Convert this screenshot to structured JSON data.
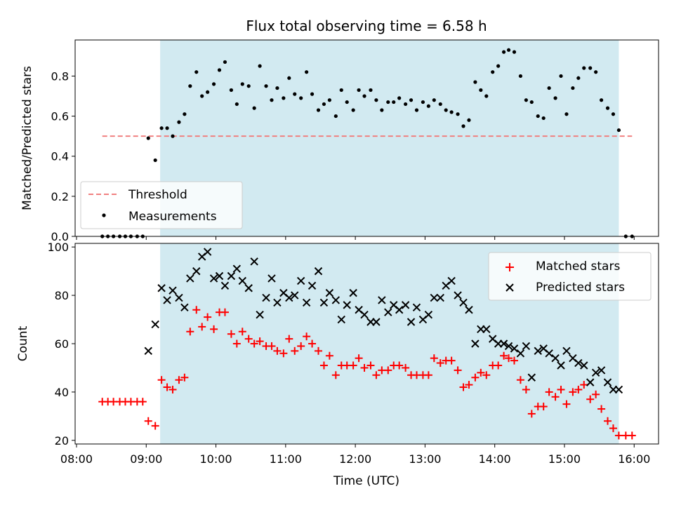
{
  "chart_data": [
    {
      "type": "scatter",
      "title": "Flux total observing time = 6.58 h",
      "ylabel": "Matched/Predicted stars",
      "ylim": [
        0.0,
        0.98
      ],
      "yticks": [
        "0.0",
        "0.2",
        "0.4",
        "0.6",
        "0.8"
      ],
      "yticks_values": [
        0.0,
        0.2,
        0.4,
        0.6,
        0.8
      ],
      "xlim_hours": [
        7.98,
        16.35
      ],
      "shaded_interval_hours": [
        9.2,
        15.78
      ],
      "shade_color": "#add8e6",
      "threshold": {
        "name": "Threshold",
        "value": 0.5,
        "x_start_hours": 8.37,
        "x_end_hours": 15.97,
        "color": "#f08080",
        "style": "dashed"
      },
      "measurements": {
        "name": "Measurements",
        "color": "#000000",
        "points": [
          [
            8.37,
            0.0
          ],
          [
            8.45,
            0.0
          ],
          [
            8.53,
            0.0
          ],
          [
            8.62,
            0.0
          ],
          [
            8.7,
            0.0
          ],
          [
            8.78,
            0.0
          ],
          [
            8.87,
            0.0
          ],
          [
            8.95,
            0.0
          ],
          [
            9.03,
            0.49
          ],
          [
            9.13,
            0.38
          ],
          [
            9.22,
            0.54
          ],
          [
            9.3,
            0.54
          ],
          [
            9.38,
            0.5
          ],
          [
            9.47,
            0.57
          ],
          [
            9.55,
            0.61
          ],
          [
            9.63,
            0.75
          ],
          [
            9.72,
            0.82
          ],
          [
            9.8,
            0.7
          ],
          [
            9.88,
            0.72
          ],
          [
            9.97,
            0.76
          ],
          [
            10.05,
            0.83
          ],
          [
            10.13,
            0.87
          ],
          [
            10.22,
            0.73
          ],
          [
            10.3,
            0.66
          ],
          [
            10.38,
            0.76
          ],
          [
            10.47,
            0.75
          ],
          [
            10.55,
            0.64
          ],
          [
            10.63,
            0.85
          ],
          [
            10.72,
            0.75
          ],
          [
            10.8,
            0.68
          ],
          [
            10.88,
            0.74
          ],
          [
            10.97,
            0.69
          ],
          [
            11.05,
            0.79
          ],
          [
            11.13,
            0.71
          ],
          [
            11.22,
            0.69
          ],
          [
            11.3,
            0.82
          ],
          [
            11.38,
            0.71
          ],
          [
            11.47,
            0.63
          ],
          [
            11.55,
            0.66
          ],
          [
            11.63,
            0.68
          ],
          [
            11.72,
            0.6
          ],
          [
            11.8,
            0.73
          ],
          [
            11.88,
            0.67
          ],
          [
            11.97,
            0.63
          ],
          [
            12.05,
            0.73
          ],
          [
            12.13,
            0.7
          ],
          [
            12.22,
            0.73
          ],
          [
            12.3,
            0.68
          ],
          [
            12.38,
            0.63
          ],
          [
            12.47,
            0.67
          ],
          [
            12.55,
            0.67
          ],
          [
            12.63,
            0.69
          ],
          [
            12.72,
            0.66
          ],
          [
            12.8,
            0.68
          ],
          [
            12.88,
            0.63
          ],
          [
            12.97,
            0.67
          ],
          [
            13.05,
            0.65
          ],
          [
            13.13,
            0.68
          ],
          [
            13.22,
            0.66
          ],
          [
            13.3,
            0.63
          ],
          [
            13.38,
            0.62
          ],
          [
            13.47,
            0.61
          ],
          [
            13.55,
            0.55
          ],
          [
            13.63,
            0.58
          ],
          [
            13.72,
            0.77
          ],
          [
            13.8,
            0.73
          ],
          [
            13.88,
            0.7
          ],
          [
            13.97,
            0.82
          ],
          [
            14.05,
            0.85
          ],
          [
            14.13,
            0.92
          ],
          [
            14.2,
            0.93
          ],
          [
            14.28,
            0.92
          ],
          [
            14.37,
            0.8
          ],
          [
            14.45,
            0.68
          ],
          [
            14.53,
            0.67
          ],
          [
            14.62,
            0.6
          ],
          [
            14.7,
            0.59
          ],
          [
            14.78,
            0.74
          ],
          [
            14.87,
            0.69
          ],
          [
            14.95,
            0.8
          ],
          [
            15.03,
            0.61
          ],
          [
            15.12,
            0.74
          ],
          [
            15.2,
            0.79
          ],
          [
            15.28,
            0.84
          ],
          [
            15.37,
            0.84
          ],
          [
            15.45,
            0.82
          ],
          [
            15.53,
            0.68
          ],
          [
            15.62,
            0.64
          ],
          [
            15.7,
            0.61
          ],
          [
            15.78,
            0.53
          ],
          [
            15.88,
            0.0
          ],
          [
            15.97,
            0.0
          ]
        ]
      },
      "legend_position": "lower-left"
    },
    {
      "type": "scatter",
      "xlabel": "Time (UTC)",
      "ylabel": "Count",
      "ylim": [
        18.5,
        101.5
      ],
      "yticks": [
        "20",
        "40",
        "60",
        "80",
        "100"
      ],
      "yticks_values": [
        20,
        40,
        60,
        80,
        100
      ],
      "xlim_hours": [
        7.98,
        16.35
      ],
      "xticks": [
        "08:00",
        "09:00",
        "10:00",
        "11:00",
        "12:00",
        "13:00",
        "14:00",
        "15:00",
        "16:00"
      ],
      "xticks_hours": [
        8,
        9,
        10,
        11,
        12,
        13,
        14,
        15,
        16
      ],
      "shaded_interval_hours": [
        9.2,
        15.78
      ],
      "legend_position": "upper-right",
      "series": [
        {
          "name": "Matched stars",
          "marker": "+",
          "color": "#ff0000",
          "points": [
            [
              8.37,
              36
            ],
            [
              8.45,
              36
            ],
            [
              8.53,
              36
            ],
            [
              8.62,
              36
            ],
            [
              8.7,
              36
            ],
            [
              8.78,
              36
            ],
            [
              8.87,
              36
            ],
            [
              8.95,
              36
            ],
            [
              9.03,
              28
            ],
            [
              9.13,
              26
            ],
            [
              9.22,
              45
            ],
            [
              9.3,
              42
            ],
            [
              9.38,
              41
            ],
            [
              9.47,
              45
            ],
            [
              9.55,
              46
            ],
            [
              9.63,
              65
            ],
            [
              9.72,
              74
            ],
            [
              9.8,
              67
            ],
            [
              9.88,
              71
            ],
            [
              9.97,
              66
            ],
            [
              10.05,
              73
            ],
            [
              10.13,
              73
            ],
            [
              10.22,
              64
            ],
            [
              10.3,
              60
            ],
            [
              10.38,
              65
            ],
            [
              10.47,
              62
            ],
            [
              10.55,
              60
            ],
            [
              10.63,
              61
            ],
            [
              10.72,
              59
            ],
            [
              10.8,
              59
            ],
            [
              10.88,
              57
            ],
            [
              10.97,
              56
            ],
            [
              11.05,
              62
            ],
            [
              11.13,
              57
            ],
            [
              11.22,
              59
            ],
            [
              11.3,
              63
            ],
            [
              11.38,
              60
            ],
            [
              11.47,
              57
            ],
            [
              11.55,
              51
            ],
            [
              11.63,
              55
            ],
            [
              11.72,
              47
            ],
            [
              11.8,
              51
            ],
            [
              11.88,
              51
            ],
            [
              11.97,
              51
            ],
            [
              12.05,
              54
            ],
            [
              12.13,
              50
            ],
            [
              12.22,
              51
            ],
            [
              12.3,
              47
            ],
            [
              12.38,
              49
            ],
            [
              12.47,
              49
            ],
            [
              12.55,
              51
            ],
            [
              12.63,
              51
            ],
            [
              12.72,
              50
            ],
            [
              12.8,
              47
            ],
            [
              12.88,
              47
            ],
            [
              12.97,
              47
            ],
            [
              13.05,
              47
            ],
            [
              13.13,
              54
            ],
            [
              13.22,
              52
            ],
            [
              13.3,
              53
            ],
            [
              13.38,
              53
            ],
            [
              13.47,
              49
            ],
            [
              13.55,
              42
            ],
            [
              13.63,
              43
            ],
            [
              13.72,
              46
            ],
            [
              13.8,
              48
            ],
            [
              13.88,
              47
            ],
            [
              13.97,
              51
            ],
            [
              14.05,
              51
            ],
            [
              14.13,
              55
            ],
            [
              14.2,
              54
            ],
            [
              14.28,
              53
            ],
            [
              14.37,
              45
            ],
            [
              14.45,
              41
            ],
            [
              14.53,
              31
            ],
            [
              14.62,
              34
            ],
            [
              14.7,
              34
            ],
            [
              14.78,
              40
            ],
            [
              14.87,
              38
            ],
            [
              14.95,
              41
            ],
            [
              15.03,
              35
            ],
            [
              15.12,
              40
            ],
            [
              15.2,
              41
            ],
            [
              15.28,
              43
            ],
            [
              15.37,
              37
            ],
            [
              15.45,
              39
            ],
            [
              15.53,
              33
            ],
            [
              15.62,
              28
            ],
            [
              15.7,
              25
            ],
            [
              15.78,
              22
            ],
            [
              15.88,
              22
            ],
            [
              15.97,
              22
            ]
          ]
        },
        {
          "name": "Predicted stars",
          "marker": "x",
          "color": "#000000",
          "points": [
            [
              9.03,
              57
            ],
            [
              9.13,
              68
            ],
            [
              9.22,
              83
            ],
            [
              9.3,
              78
            ],
            [
              9.38,
              82
            ],
            [
              9.47,
              79
            ],
            [
              9.55,
              75
            ],
            [
              9.63,
              87
            ],
            [
              9.72,
              90
            ],
            [
              9.8,
              96
            ],
            [
              9.88,
              98
            ],
            [
              9.97,
              87
            ],
            [
              10.05,
              88
            ],
            [
              10.13,
              84
            ],
            [
              10.22,
              88
            ],
            [
              10.3,
              91
            ],
            [
              10.38,
              86
            ],
            [
              10.47,
              83
            ],
            [
              10.55,
              94
            ],
            [
              10.63,
              72
            ],
            [
              10.72,
              79
            ],
            [
              10.8,
              87
            ],
            [
              10.88,
              77
            ],
            [
              10.97,
              81
            ],
            [
              11.05,
              79
            ],
            [
              11.13,
              80
            ],
            [
              11.22,
              86
            ],
            [
              11.3,
              77
            ],
            [
              11.38,
              84
            ],
            [
              11.47,
              90
            ],
            [
              11.55,
              77
            ],
            [
              11.63,
              81
            ],
            [
              11.72,
              78
            ],
            [
              11.8,
              70
            ],
            [
              11.88,
              76
            ],
            [
              11.97,
              81
            ],
            [
              12.05,
              74
            ],
            [
              12.13,
              72
            ],
            [
              12.22,
              69
            ],
            [
              12.3,
              69
            ],
            [
              12.38,
              78
            ],
            [
              12.47,
              73
            ],
            [
              12.55,
              76
            ],
            [
              12.63,
              74
            ],
            [
              12.72,
              76
            ],
            [
              12.8,
              69
            ],
            [
              12.88,
              75
            ],
            [
              12.97,
              70
            ],
            [
              13.05,
              72
            ],
            [
              13.13,
              79
            ],
            [
              13.22,
              79
            ],
            [
              13.3,
              84
            ],
            [
              13.38,
              86
            ],
            [
              13.47,
              80
            ],
            [
              13.55,
              77
            ],
            [
              13.63,
              74
            ],
            [
              13.72,
              60
            ],
            [
              13.8,
              66
            ],
            [
              13.88,
              66
            ],
            [
              13.97,
              62
            ],
            [
              14.05,
              60
            ],
            [
              14.13,
              60
            ],
            [
              14.2,
              59
            ],
            [
              14.28,
              58
            ],
            [
              14.37,
              56
            ],
            [
              14.45,
              59
            ],
            [
              14.53,
              46
            ],
            [
              14.62,
              57
            ],
            [
              14.7,
              58
            ],
            [
              14.78,
              56
            ],
            [
              14.87,
              54
            ],
            [
              14.95,
              51
            ],
            [
              15.03,
              57
            ],
            [
              15.12,
              54
            ],
            [
              15.2,
              52
            ],
            [
              15.28,
              51
            ],
            [
              15.37,
              44
            ],
            [
              15.45,
              48
            ],
            [
              15.53,
              49
            ],
            [
              15.62,
              44
            ],
            [
              15.7,
              41
            ],
            [
              15.78,
              41
            ]
          ]
        }
      ]
    }
  ]
}
